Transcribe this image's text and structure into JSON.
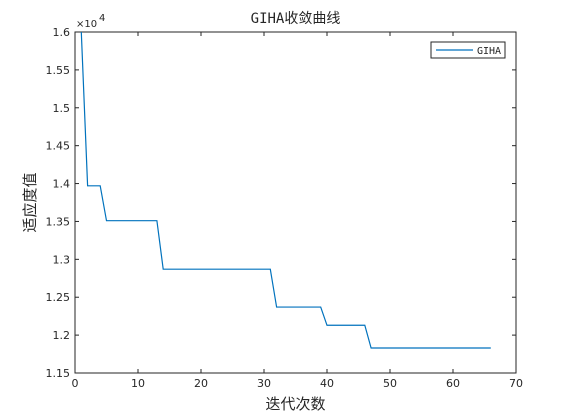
{
  "chart_data": {
    "type": "line",
    "title": "GIHA收敛曲线",
    "xlabel": "迭代次数",
    "ylabel": "适应度值",
    "xlim": [
      0,
      70
    ],
    "ylim": [
      11500,
      16000
    ],
    "xticks": [
      0,
      10,
      20,
      30,
      40,
      50,
      60,
      70
    ],
    "yticks": [
      11500,
      12000,
      12500,
      13000,
      13500,
      14000,
      14500,
      15000,
      15500,
      16000
    ],
    "ytick_labels": [
      "1.15",
      "1.2",
      "1.25",
      "1.3",
      "1.35",
      "1.4",
      "1.45",
      "1.5",
      "1.55",
      "1.6"
    ],
    "y_exponent": "×10",
    "y_exponent_power": "4",
    "grid": false,
    "legend_position": "top-right",
    "series": [
      {
        "name": "GIHA",
        "color": "#0072BD",
        "x": [
          1,
          2,
          3,
          4,
          5,
          6,
          7,
          8,
          9,
          10,
          11,
          12,
          13,
          14,
          15,
          16,
          17,
          18,
          19,
          20,
          21,
          22,
          23,
          24,
          25,
          26,
          27,
          28,
          29,
          30,
          31,
          32,
          33,
          34,
          35,
          36,
          37,
          38,
          39,
          40,
          41,
          42,
          43,
          44,
          45,
          46,
          47,
          48,
          49,
          50,
          51,
          52,
          53,
          54,
          55,
          56,
          57,
          58,
          59,
          60,
          61,
          62,
          63,
          64,
          65,
          66
        ],
        "y": [
          16000,
          13970,
          13970,
          13970,
          13510,
          13510,
          13510,
          13510,
          13510,
          13510,
          13510,
          13510,
          13510,
          12870,
          12870,
          12870,
          12870,
          12870,
          12870,
          12870,
          12870,
          12870,
          12870,
          12870,
          12870,
          12870,
          12870,
          12870,
          12870,
          12870,
          12870,
          12370,
          12370,
          12370,
          12370,
          12370,
          12370,
          12370,
          12370,
          12130,
          12130,
          12130,
          12130,
          12130,
          12130,
          12130,
          11830,
          11830,
          11830,
          11830,
          11830,
          11830,
          11830,
          11830,
          11830,
          11830,
          11830,
          11830,
          11830,
          11830,
          11830,
          11830,
          11830,
          11830,
          11830,
          11830
        ]
      }
    ]
  }
}
